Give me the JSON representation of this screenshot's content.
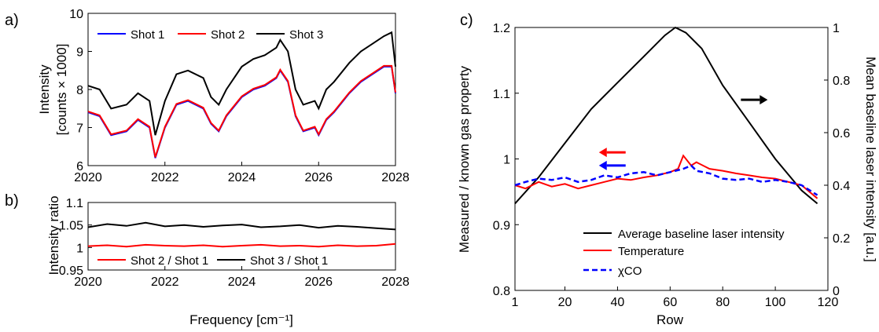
{
  "chart_data": [
    {
      "panel": "a)",
      "type": "line",
      "xlabel": "",
      "ylabel_lines": [
        "Intensity",
        "[counts × 1000]"
      ],
      "xlim": [
        2020,
        2028
      ],
      "ylim": [
        6,
        10
      ],
      "xticks": [
        "2020",
        "2022",
        "2024",
        "2026",
        "2028"
      ],
      "yticks": [
        "6",
        "7",
        "8",
        "9",
        "10"
      ],
      "legend_position": "top-left",
      "grid": false,
      "series": [
        {
          "name": "Shot 1",
          "color": "#0000ff",
          "x": [
            2020,
            2020.3,
            2020.6,
            2021,
            2021.3,
            2021.6,
            2021.75,
            2022,
            2022.3,
            2022.6,
            2023,
            2023.2,
            2023.4,
            2023.6,
            2024,
            2024.3,
            2024.6,
            2024.9,
            2025,
            2025.2,
            2025.4,
            2025.6,
            2025.9,
            2026,
            2026.2,
            2026.4,
            2026.8,
            2027.1,
            2027.4,
            2027.7,
            2027.9,
            2028
          ],
          "y": [
            7.4,
            7.3,
            6.8,
            6.9,
            7.2,
            7.0,
            6.2,
            7.0,
            7.6,
            7.7,
            7.5,
            7.1,
            6.9,
            7.3,
            7.8,
            8.0,
            8.1,
            8.3,
            8.5,
            8.2,
            7.3,
            6.9,
            7.0,
            6.8,
            7.2,
            7.4,
            7.9,
            8.2,
            8.4,
            8.6,
            8.6,
            7.9
          ]
        },
        {
          "name": "Shot 2",
          "color": "#ff0000",
          "x": [
            2020,
            2020.3,
            2020.6,
            2021,
            2021.3,
            2021.6,
            2021.75,
            2022,
            2022.3,
            2022.6,
            2023,
            2023.2,
            2023.4,
            2023.6,
            2024,
            2024.3,
            2024.6,
            2024.9,
            2025,
            2025.2,
            2025.4,
            2025.6,
            2025.9,
            2026,
            2026.2,
            2026.4,
            2026.8,
            2027.1,
            2027.4,
            2027.7,
            2027.9,
            2028
          ],
          "y": [
            7.42,
            7.32,
            6.82,
            6.92,
            7.22,
            7.02,
            6.22,
            7.02,
            7.62,
            7.72,
            7.52,
            7.12,
            6.92,
            7.32,
            7.82,
            8.02,
            8.12,
            8.32,
            8.52,
            8.22,
            7.32,
            6.92,
            7.02,
            6.82,
            7.22,
            7.42,
            7.92,
            8.22,
            8.42,
            8.62,
            8.62,
            7.92
          ]
        },
        {
          "name": "Shot 3",
          "color": "#000000",
          "x": [
            2020,
            2020.3,
            2020.6,
            2021,
            2021.3,
            2021.6,
            2021.75,
            2022,
            2022.3,
            2022.6,
            2023,
            2023.2,
            2023.4,
            2023.6,
            2024,
            2024.3,
            2024.6,
            2024.9,
            2025,
            2025.2,
            2025.4,
            2025.6,
            2025.9,
            2026,
            2026.2,
            2026.4,
            2026.8,
            2027.1,
            2027.4,
            2027.7,
            2027.9,
            2028
          ],
          "y": [
            8.1,
            8.0,
            7.5,
            7.6,
            7.9,
            7.7,
            6.8,
            7.7,
            8.4,
            8.5,
            8.3,
            7.8,
            7.6,
            8.0,
            8.6,
            8.8,
            8.9,
            9.1,
            9.3,
            9.0,
            8.0,
            7.6,
            7.7,
            7.5,
            8.0,
            8.2,
            8.7,
            9.0,
            9.2,
            9.4,
            9.5,
            8.6
          ]
        }
      ]
    },
    {
      "panel": "b)",
      "type": "line",
      "xlabel": "Frequency [cm⁻¹]",
      "ylabel": "Intensity ratio",
      "xlim": [
        2020,
        2028
      ],
      "ylim": [
        0.95,
        1.1
      ],
      "xticks": [
        "2020",
        "2022",
        "2024",
        "2026",
        "2028"
      ],
      "yticks": [
        "0.95",
        "1",
        "1.05",
        "1.1"
      ],
      "legend_position": "bottom",
      "grid": false,
      "series": [
        {
          "name": "Shot 2 / Shot 1",
          "color": "#ff0000",
          "x": [
            2020,
            2020.5,
            2021,
            2021.5,
            2022,
            2022.5,
            2023,
            2023.5,
            2024,
            2024.5,
            2025,
            2025.5,
            2026,
            2026.5,
            2027,
            2027.5,
            2028
          ],
          "y": [
            1.003,
            1.005,
            1.002,
            1.006,
            1.004,
            1.003,
            1.005,
            1.002,
            1.004,
            1.006,
            1.003,
            1.004,
            1.002,
            1.005,
            1.003,
            1.004,
            1.008
          ]
        },
        {
          "name": "Shot 3 / Shot 1",
          "color": "#000000",
          "x": [
            2020,
            2020.5,
            2021,
            2021.5,
            2022,
            2022.5,
            2023,
            2023.5,
            2024,
            2024.5,
            2025,
            2025.5,
            2026,
            2026.5,
            2027,
            2027.5,
            2028
          ],
          "y": [
            1.045,
            1.052,
            1.048,
            1.055,
            1.047,
            1.05,
            1.046,
            1.049,
            1.051,
            1.045,
            1.047,
            1.05,
            1.044,
            1.048,
            1.046,
            1.043,
            1.04
          ]
        }
      ]
    },
    {
      "panel": "c)",
      "type": "line",
      "xlabel": "Row",
      "ylabel": "Measured / known gas property",
      "ylabel_right": "Mean baseline laser intensity [a.u.]",
      "xlim": [
        1,
        120
      ],
      "ylim": [
        0.8,
        1.2
      ],
      "ylim_right": [
        0,
        1
      ],
      "xticks": [
        "1",
        "20",
        "40",
        "60",
        "80",
        "100",
        "120"
      ],
      "xtick_values": [
        1,
        20,
        40,
        60,
        80,
        100,
        120
      ],
      "yticks": [
        "0.8",
        "0.9",
        "1",
        "1.1",
        "1.2"
      ],
      "yticks_right": [
        "0",
        "0.2",
        "0.4",
        "0.6",
        "0.8",
        "1"
      ],
      "legend_position": "bottom-left",
      "grid": false,
      "series": [
        {
          "name": "Average baseline laser intensity",
          "axis": "right",
          "color": "#000000",
          "x": [
            1,
            10,
            20,
            30,
            40,
            50,
            58,
            62,
            66,
            72,
            80,
            90,
            100,
            110,
            116
          ],
          "y": [
            0.33,
            0.43,
            0.56,
            0.69,
            0.79,
            0.89,
            0.97,
            1.0,
            0.98,
            0.92,
            0.78,
            0.64,
            0.5,
            0.38,
            0.33
          ]
        },
        {
          "name": "Temperature",
          "axis": "left",
          "color": "#ff0000",
          "x": [
            1,
            5,
            10,
            15,
            20,
            25,
            30,
            35,
            40,
            45,
            50,
            55,
            60,
            63,
            65,
            68,
            70,
            75,
            80,
            85,
            90,
            95,
            100,
            105,
            110,
            116
          ],
          "y": [
            0.96,
            0.955,
            0.965,
            0.958,
            0.962,
            0.955,
            0.96,
            0.965,
            0.97,
            0.968,
            0.972,
            0.975,
            0.98,
            0.985,
            1.005,
            0.99,
            0.995,
            0.985,
            0.982,
            0.978,
            0.975,
            0.972,
            0.97,
            0.965,
            0.96,
            0.94
          ]
        },
        {
          "name": "χCO",
          "axis": "left",
          "color": "#0000ff",
          "dashed": true,
          "x": [
            1,
            5,
            10,
            15,
            20,
            25,
            30,
            35,
            40,
            45,
            50,
            55,
            60,
            65,
            68,
            70,
            75,
            80,
            85,
            90,
            95,
            100,
            105,
            110,
            116
          ],
          "y": [
            0.96,
            0.965,
            0.97,
            0.968,
            0.972,
            0.965,
            0.968,
            0.975,
            0.972,
            0.978,
            0.98,
            0.975,
            0.98,
            0.985,
            0.99,
            0.982,
            0.978,
            0.97,
            0.968,
            0.97,
            0.965,
            0.968,
            0.965,
            0.96,
            0.945
          ]
        }
      ],
      "annotations": [
        {
          "kind": "arrow",
          "direction": "right",
          "color": "#000000",
          "x_data": 92,
          "y_data": 1.09
        },
        {
          "kind": "arrow",
          "direction": "left",
          "color": "#ff0000",
          "x_data": 38,
          "y_data": 1.01
        },
        {
          "kind": "arrow",
          "direction": "left",
          "color": "#0000ff",
          "x_data": 38,
          "y_data": 0.99
        }
      ]
    }
  ]
}
